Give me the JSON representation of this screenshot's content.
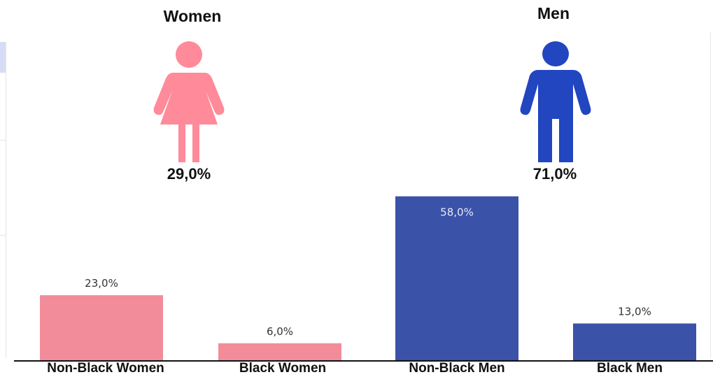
{
  "groups": {
    "women": {
      "title": "Women",
      "percent": "29,0%",
      "color": "#ff8a9a",
      "icon": "woman-icon"
    },
    "men": {
      "title": "Men",
      "percent": "71,0%",
      "color": "#2245c0",
      "icon": "man-icon"
    }
  },
  "chart_data": {
    "type": "bar",
    "categories": [
      "Non-Black Women",
      "Black Women",
      "Non-Black Men",
      "Black Men"
    ],
    "values": [
      23.0,
      6.0,
      58.0,
      13.0
    ],
    "value_labels": [
      "23,0%",
      "6,0%",
      "58,0%",
      "13,0%"
    ],
    "colors": [
      "#f28c9b",
      "#f28c9b",
      "#3a52a8",
      "#3a52a8"
    ],
    "ylim": [
      0,
      100
    ],
    "grid": false
  }
}
